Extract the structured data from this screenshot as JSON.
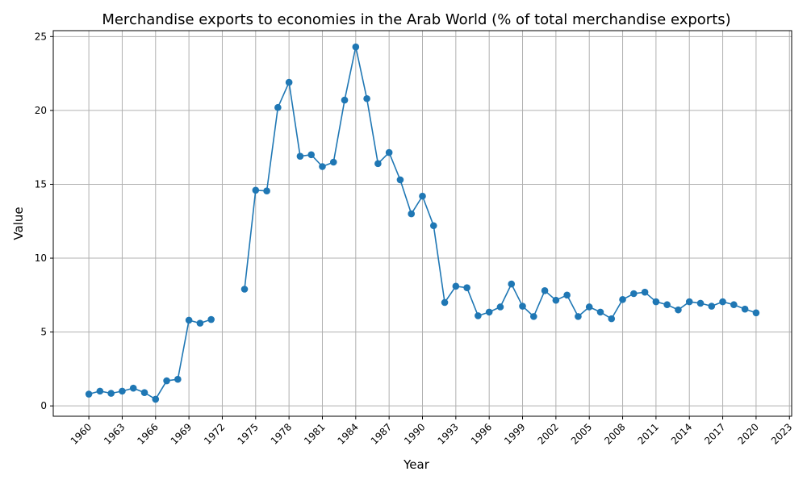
{
  "chart_data": {
    "type": "line",
    "title": "Merchandise exports to economies in the Arab World (% of total merchandise exports)",
    "xlabel": "Year",
    "ylabel": "Value",
    "xlim": [
      1956.8,
      2023.2
    ],
    "ylim": [
      -0.7,
      25.4
    ],
    "x_ticks": [
      1960,
      1963,
      1966,
      1969,
      1972,
      1975,
      1978,
      1981,
      1984,
      1987,
      1990,
      1993,
      1996,
      1999,
      2002,
      2005,
      2008,
      2011,
      2014,
      2017,
      2020,
      2023
    ],
    "y_ticks": [
      0,
      5,
      10,
      15,
      20,
      25
    ],
    "grid": true,
    "line_color": "#1f77b4",
    "marker": "circle",
    "x": [
      1960,
      1961,
      1962,
      1963,
      1964,
      1965,
      1966,
      1967,
      1968,
      1969,
      1970,
      1971,
      1972,
      1973,
      1974,
      1975,
      1976,
      1977,
      1978,
      1979,
      1980,
      1981,
      1982,
      1983,
      1984,
      1985,
      1986,
      1987,
      1988,
      1989,
      1990,
      1991,
      1992,
      1993,
      1994,
      1995,
      1996,
      1997,
      1998,
      1999,
      2000,
      2001,
      2002,
      2003,
      2004,
      2005,
      2006,
      2007,
      2008,
      2009,
      2010,
      2011,
      2012,
      2013,
      2014,
      2015,
      2016,
      2017,
      2018,
      2019,
      2020
    ],
    "values": [
      0.8,
      1.0,
      0.85,
      1.0,
      1.2,
      0.9,
      0.45,
      1.7,
      1.8,
      5.8,
      5.6,
      5.85,
      null,
      null,
      7.9,
      14.6,
      14.55,
      20.2,
      21.9,
      16.9,
      17.0,
      16.2,
      16.5,
      20.7,
      24.3,
      20.8,
      16.4,
      17.15,
      15.3,
      13.0,
      14.2,
      12.2,
      7.0,
      8.1,
      8.0,
      6.1,
      6.35,
      6.7,
      8.25,
      6.75,
      6.05,
      7.8,
      7.15,
      7.5,
      6.05,
      6.7,
      6.35,
      5.9,
      7.2,
      7.6,
      7.7,
      7.05,
      6.85,
      6.5,
      7.05,
      6.95,
      6.75,
      7.05,
      6.85,
      6.55,
      6.3
    ]
  }
}
